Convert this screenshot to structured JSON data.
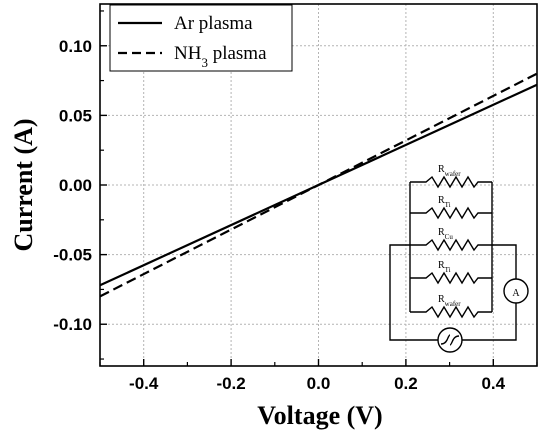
{
  "chart_data": {
    "type": "line",
    "title": "",
    "xlabel": "Voltage (V)",
    "ylabel": "Current (A)",
    "xlim": [
      -0.5,
      0.5
    ],
    "ylim": [
      -0.13,
      0.13
    ],
    "xticks": [
      -0.4,
      -0.2,
      0.0,
      0.2,
      0.4
    ],
    "xtick_labels": [
      "-0.4",
      "-0.2",
      "0.0",
      "0.2",
      "0.4"
    ],
    "yticks": [
      -0.1,
      -0.05,
      0.0,
      0.05,
      0.1
    ],
    "ytick_labels": [
      "-0.10",
      "-0.05",
      "0.00",
      "0.05",
      "0.10"
    ],
    "grid": true,
    "legend_position": "top-left",
    "series": [
      {
        "name": "Ar plasma",
        "style": "solid",
        "x": [
          -0.5,
          0.5
        ],
        "y": [
          -0.072,
          0.072
        ]
      },
      {
        "name": "NH3 plasma",
        "legend_main": "NH",
        "legend_sub": "3",
        "legend_rest": " plasma",
        "style": "dashed",
        "x": [
          -0.5,
          0.5
        ],
        "y": [
          -0.08,
          0.08
        ]
      }
    ],
    "inset": {
      "type": "circuit-diagram",
      "resistor_labels": [
        {
          "main": "R",
          "sub": "wafer"
        },
        {
          "main": "R",
          "sub": "Ti"
        },
        {
          "main": "R",
          "sub": "Cu"
        },
        {
          "main": "R",
          "sub": "Ti"
        },
        {
          "main": "R",
          "sub": "wafer"
        }
      ],
      "ammeter_label": "A"
    }
  },
  "colors": {
    "line": "#000000",
    "grid": "#b4b4b4",
    "background": "#ffffff"
  }
}
